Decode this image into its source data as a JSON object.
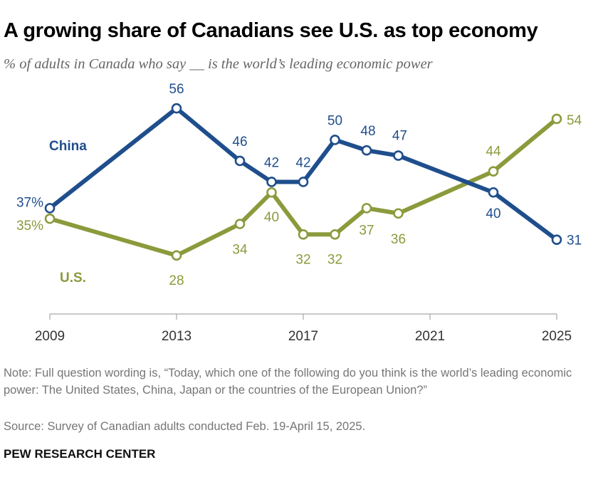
{
  "title": "A growing share of Canadians see U.S. as top economy",
  "subtitle": "% of adults in Canada who say __ is the world’s leading economic power",
  "chart_data": {
    "type": "line",
    "title": "A growing share of Canadians see U.S. as top economy",
    "subtitle": "% of adults in Canada who say __ is the world’s leading economic power",
    "xlabel": "",
    "ylabel": "",
    "x": [
      2009,
      2013,
      2015,
      2016,
      2017,
      2018,
      2019,
      2020,
      2023,
      2025
    ],
    "xticks": [
      "2009",
      "2013",
      "2017",
      "2021",
      "2025"
    ],
    "xlim": [
      2009,
      2025
    ],
    "ylim": [
      17,
      59
    ],
    "grid": false,
    "series": [
      {
        "name": "China",
        "color": "#1f4e8c",
        "values": [
          37,
          56,
          46,
          42,
          42,
          50,
          48,
          47,
          40,
          31
        ],
        "labels": [
          "37%",
          "56",
          "46",
          "42",
          "42",
          "50",
          "48",
          "47",
          "40",
          "31"
        ]
      },
      {
        "name": "U.S.",
        "color": "#8c9a3c",
        "values": [
          35,
          28,
          34,
          40,
          32,
          32,
          37,
          36,
          44,
          54
        ],
        "labels": [
          "35%",
          "28",
          "34",
          "40",
          "32",
          "32",
          "37",
          "36",
          "44",
          "54"
        ]
      }
    ]
  },
  "series_labels": {
    "china": "China",
    "us": "U.S."
  },
  "note": "Note: Full question wording is, “Today, which one of the following do you think is the world’s leading economic power: The United States, China, Japan or the countries of the European Union?”",
  "source": "Source: Survey of Canadian adults conducted Feb. 19-April 15, 2025.",
  "brand": "PEW RESEARCH CENTER"
}
